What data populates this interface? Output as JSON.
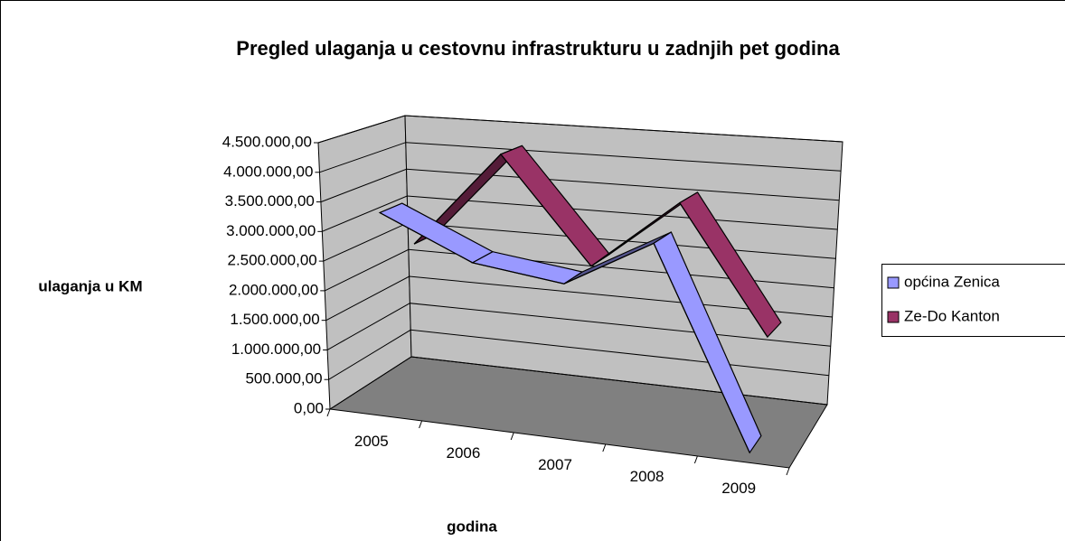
{
  "chart_data": {
    "type": "line3d",
    "title": "Pregled ulaganja u cestovnu infrastrukturu u zadnjih pet godina",
    "y_label": "ulaganja u KM",
    "x_label": "godina",
    "categories": [
      "2005",
      "2006",
      "2007",
      "2008",
      "2009"
    ],
    "series": [
      {
        "name": "općina Zenica",
        "color": "#9999ff",
        "values": [
          3300000,
          2600000,
          2400000,
          3200000,
          0
        ]
      },
      {
        "name": "Ze-Do Kanton",
        "color": "#993366",
        "values": [
          2500000,
          4200000,
          2400000,
          3600000,
          1500000
        ]
      }
    ],
    "ylim": [
      0,
      4500000
    ],
    "yticks": [
      {
        "value": 0,
        "label": "0,00"
      },
      {
        "value": 500000,
        "label": "500.000,00"
      },
      {
        "value": 1000000,
        "label": "1.000.000,00"
      },
      {
        "value": 1500000,
        "label": "1.500.000,00"
      },
      {
        "value": 2000000,
        "label": "2.000.000,00"
      },
      {
        "value": 2500000,
        "label": "2.500.000,00"
      },
      {
        "value": 3000000,
        "label": "3.000.000,00"
      },
      {
        "value": 3500000,
        "label": "3.500.000,00"
      },
      {
        "value": 4000000,
        "label": "4.000.000,00"
      },
      {
        "value": 4500000,
        "label": "4.500.000,00"
      }
    ],
    "grid": true,
    "legend": "right"
  }
}
